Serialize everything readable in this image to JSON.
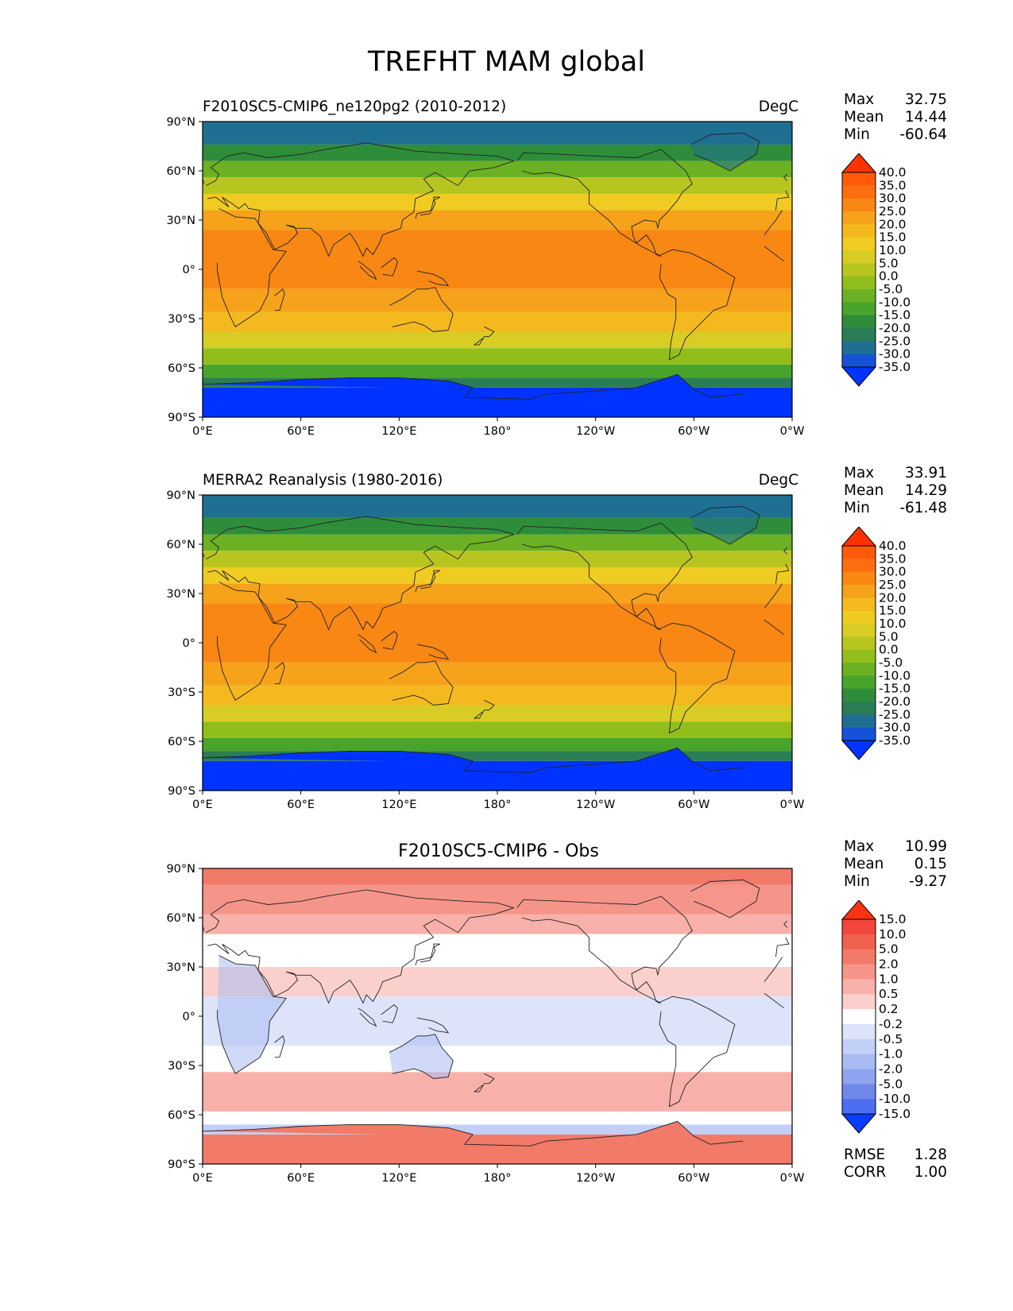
{
  "figure": {
    "title": "TREFHT MAM global"
  },
  "axes": {
    "lat_ticks": [
      "90°N",
      "60°N",
      "30°N",
      "0°",
      "30°S",
      "60°S",
      "90°S"
    ],
    "lon_ticks": [
      "0°E",
      "60°E",
      "120°E",
      "180°",
      "120°W",
      "60°W",
      "0°W"
    ]
  },
  "chart_data": [
    {
      "type": "heatmap",
      "title": "F2010SC5-CMIP6_ne120pg2 (2010-2012)",
      "units": "DegC",
      "xlabel": "",
      "ylabel": "",
      "xlim": [
        0,
        360
      ],
      "ylim": [
        -90,
        90
      ],
      "stats": {
        "max": "32.75",
        "mean": "14.44",
        "min": "-60.64"
      },
      "colorbar": {
        "levels": [
          "40.0",
          "35.0",
          "30.0",
          "25.0",
          "20.0",
          "15.0",
          "10.0",
          "5.0",
          "0.0",
          "-5.0",
          "-10.0",
          "-15.0",
          "-20.0",
          "-25.0",
          "-30.0",
          "-35.0"
        ],
        "colors": [
          "#ff3300",
          "#ff5a0a",
          "#fb6e10",
          "#f88714",
          "#f6a21a",
          "#f4b91e",
          "#f0cb22",
          "#d9cc25",
          "#b8c520",
          "#92be1c",
          "#6bb123",
          "#48a42a",
          "#2e8d3b",
          "#2b7d55",
          "#1f6f92",
          "#1652d8",
          "#0033ff"
        ]
      }
    },
    {
      "type": "heatmap",
      "title": "MERRA2 Reanalysis (1980-2016)",
      "units": "DegC",
      "xlabel": "",
      "ylabel": "",
      "xlim": [
        0,
        360
      ],
      "ylim": [
        -90,
        90
      ],
      "stats": {
        "max": "33.91",
        "mean": "14.29",
        "min": "-61.48"
      },
      "colorbar": {
        "levels": [
          "40.0",
          "35.0",
          "30.0",
          "25.0",
          "20.0",
          "15.0",
          "10.0",
          "5.0",
          "0.0",
          "-5.0",
          "-10.0",
          "-15.0",
          "-20.0",
          "-25.0",
          "-30.0",
          "-35.0"
        ],
        "colors": [
          "#ff3300",
          "#ff5a0a",
          "#fb6e10",
          "#f88714",
          "#f6a21a",
          "#f4b91e",
          "#f0cb22",
          "#d9cc25",
          "#b8c520",
          "#92be1c",
          "#6bb123",
          "#48a42a",
          "#2e8d3b",
          "#2b7d55",
          "#1f6f92",
          "#1652d8",
          "#0033ff"
        ]
      }
    },
    {
      "type": "heatmap",
      "title": "F2010SC5-CMIP6 - Obs",
      "units": "",
      "xlabel": "",
      "ylabel": "",
      "xlim": [
        0,
        360
      ],
      "ylim": [
        -90,
        90
      ],
      "stats": {
        "max": "10.99",
        "mean": "0.15",
        "min": "-9.27"
      },
      "rmse": "1.28",
      "corr": "1.00",
      "colorbar": {
        "levels": [
          "15.0",
          "10.0",
          "5.0",
          "2.0",
          "1.0",
          "0.5",
          "0.2",
          "-0.2",
          "-0.5",
          "-1.0",
          "-2.0",
          "-5.0",
          "-10.0",
          "-15.0"
        ],
        "colors": [
          "#ff3311",
          "#f2473a",
          "#f0614f",
          "#f27a68",
          "#f5958a",
          "#f8b1aa",
          "#fbd0cc",
          "#ffffff",
          "#dde4fa",
          "#c2cff6",
          "#a9bbf2",
          "#8da5ee",
          "#6f88ea",
          "#4d6ef0",
          "#0a3cff"
        ]
      }
    }
  ],
  "diff_footer": {
    "rmse_label": "RMSE",
    "corr_label": "CORR"
  },
  "stat_labels": {
    "max": "Max",
    "mean": "Mean",
    "min": "Min"
  }
}
